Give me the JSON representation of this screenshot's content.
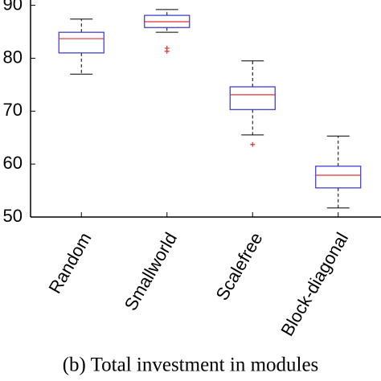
{
  "chart_data": {
    "type": "box",
    "caption": "(b) Total investment in modules",
    "categories": [
      "Random",
      "Smallworld",
      "Scalefree",
      "Block-diagonal"
    ],
    "stats": [
      {
        "low": 77.0,
        "q1": 81.0,
        "median": 83.7,
        "q3": 84.9,
        "high": 87.4,
        "outliers": []
      },
      {
        "low": 84.9,
        "q1": 85.8,
        "median": 86.9,
        "q3": 88.1,
        "high": 89.2,
        "outliers": [
          81.9,
          81.3
        ]
      },
      {
        "low": 65.5,
        "q1": 70.3,
        "median": 73.1,
        "q3": 74.6,
        "high": 79.5,
        "outliers": [
          63.7
        ]
      },
      {
        "low": 51.7,
        "q1": 55.5,
        "median": 57.9,
        "q3": 59.6,
        "high": 65.3,
        "outliers": []
      }
    ],
    "box_color": "#3333cc",
    "median_color": "#e03030",
    "whisker_color": "#000000",
    "outlier_color": "#e03030",
    "ylim": [
      50,
      91
    ],
    "yticks": [
      50,
      60,
      70,
      80,
      90
    ]
  }
}
